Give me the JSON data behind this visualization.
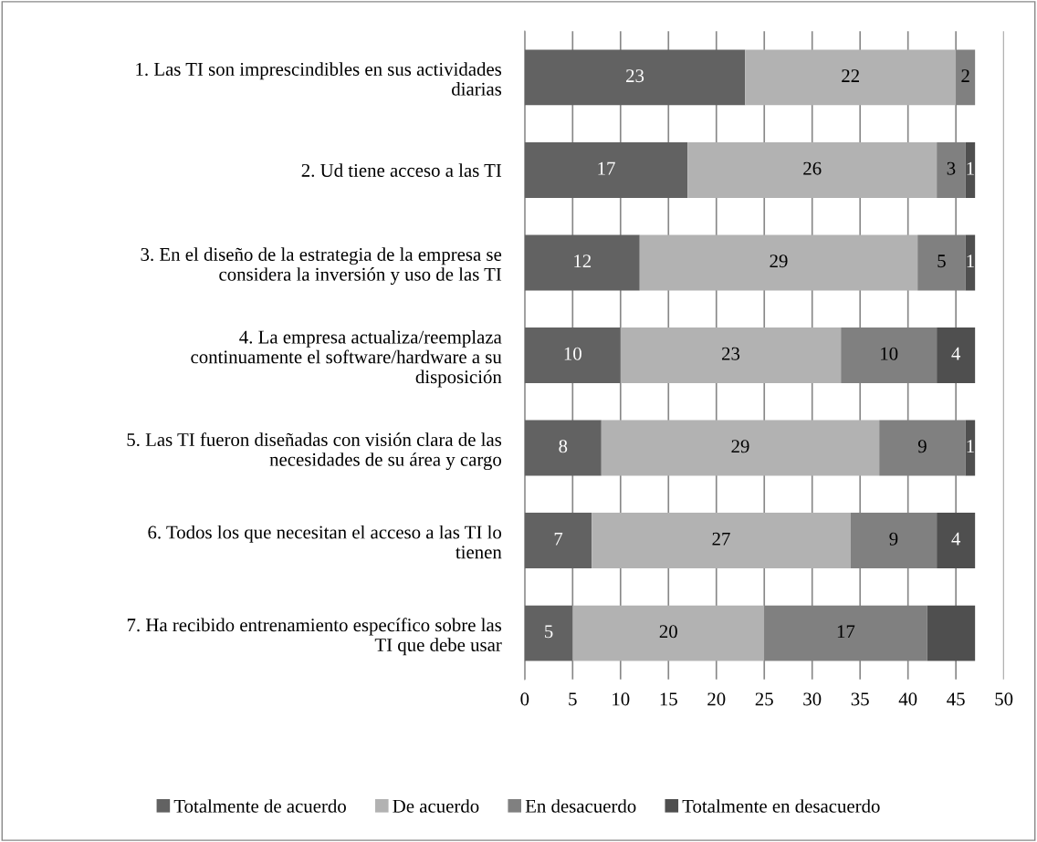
{
  "chart_data": {
    "type": "bar",
    "orientation": "horizontal",
    "stacked": true,
    "categories": [
      "1. Las TI son imprescindibles en sus actividades\ndiarias",
      "2. Ud tiene acceso a las TI",
      "3. En el diseño de la estrategia de la empresa se\nconsidera la inversión y uso de las TI",
      "4. La empresa actualiza/reemplaza\ncontinuamente el software/hardware a su\ndisposición",
      "5. Las TI fueron diseñadas con visión clara de las\nnecesidades de su área y cargo",
      "6. Todos los que necesitan el acceso a las TI lo\ntienen",
      "7. Ha recibido entrenamiento específico sobre las\nTI que debe usar"
    ],
    "series": [
      {
        "name": "Totalmente de acuerdo",
        "color": "#626262",
        "values": [
          23,
          17,
          12,
          10,
          8,
          7,
          5
        ],
        "value_labels": [
          "23",
          "17",
          "12",
          "10",
          "8",
          "7",
          "5"
        ]
      },
      {
        "name": "De acuerdo",
        "color": "#b2b2b2",
        "values": [
          22,
          26,
          29,
          23,
          29,
          27,
          20
        ],
        "value_labels": [
          "22",
          "26",
          "29",
          "23",
          "29",
          "27",
          "20"
        ]
      },
      {
        "name": "En desacuerdo",
        "color": "#808080",
        "values": [
          2,
          3,
          5,
          10,
          9,
          9,
          17
        ],
        "value_labels": [
          "2",
          "3",
          "5",
          "10",
          "9",
          "9",
          "17"
        ]
      },
      {
        "name": "Totalmente en desacuerdo",
        "color": "#4f4f4f",
        "values": [
          0,
          1,
          1,
          4,
          1,
          4,
          5
        ],
        "value_labels": [
          null,
          "1",
          "1",
          "4",
          "1",
          "4",
          null
        ]
      }
    ],
    "xlim": [
      0,
      50
    ],
    "xticks": [
      0,
      5,
      10,
      15,
      20,
      25,
      30,
      35,
      40,
      45,
      50
    ],
    "grid": "x",
    "legend": "bottom"
  }
}
